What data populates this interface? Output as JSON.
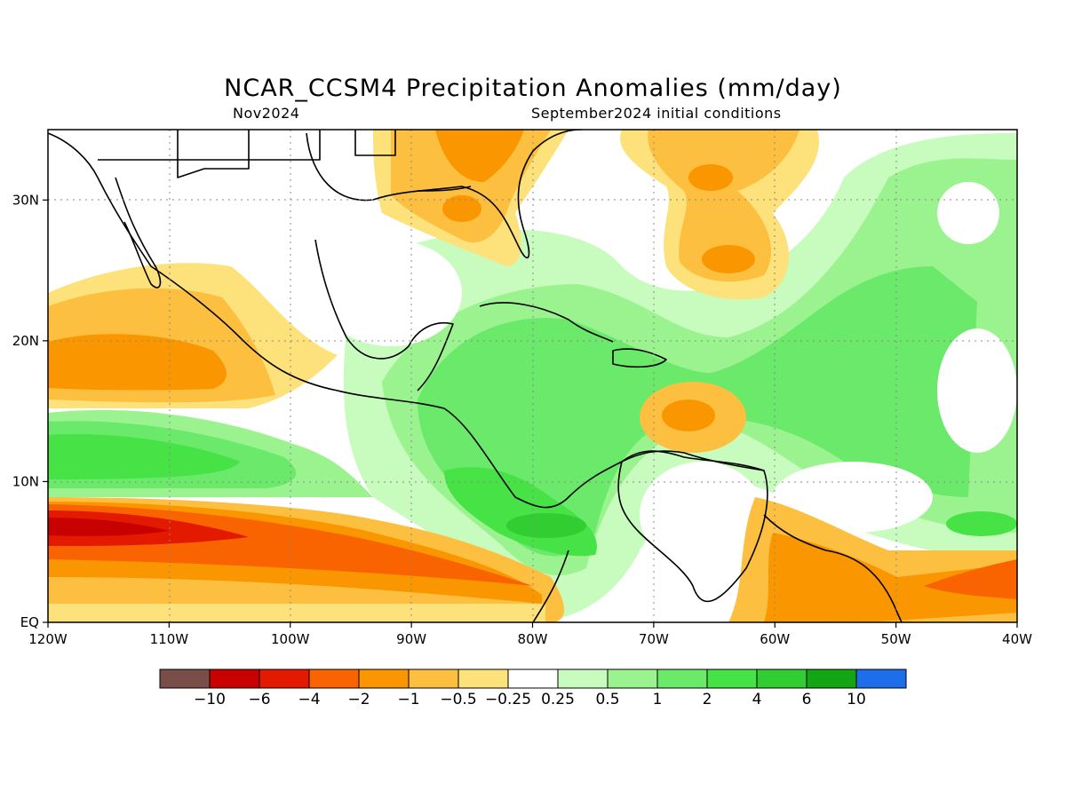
{
  "title": "NCAR_CCSM4 Precipitation Anomalies (mm/day)",
  "subtitle_left": "Nov2024",
  "subtitle_right": "September2024 initial conditions",
  "map": {
    "lon_range": [
      -120,
      -40
    ],
    "lat_range": [
      0,
      35
    ],
    "lon_ticks": [
      "120W",
      "110W",
      "100W",
      "90W",
      "80W",
      "70W",
      "60W",
      "50W",
      "40W"
    ],
    "lat_ticks": [
      "EQ",
      "10N",
      "20N",
      "30N"
    ],
    "grid": "dotted"
  },
  "colorbar": {
    "colors": [
      "#7a4e48",
      "#c80000",
      "#e41a00",
      "#fa6400",
      "#fa9600",
      "#fcbf40",
      "#fde17a",
      "#ffffff",
      "#c8fbbe",
      "#9bf38f",
      "#6ae96a",
      "#46e246",
      "#32cd32",
      "#14a514",
      "#1e6eeb"
    ],
    "labels": [
      "-10",
      "-6",
      "-4",
      "-2",
      "-1",
      "-0.5",
      "-0.25",
      "0.25",
      "0.5",
      "1",
      "2",
      "4",
      "6",
      "10"
    ]
  }
}
